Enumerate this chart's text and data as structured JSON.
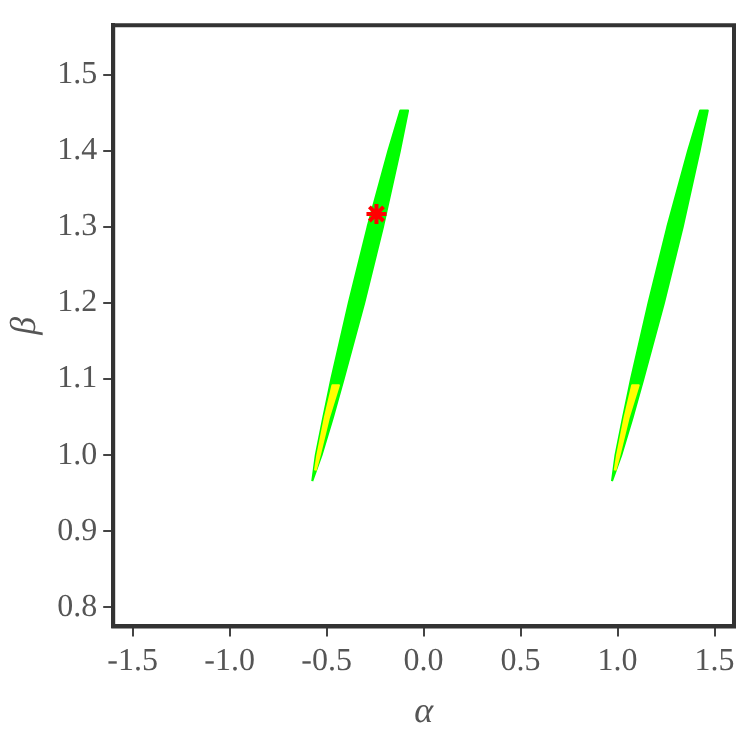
{
  "chart_data": {
    "type": "area",
    "xlabel": "α",
    "ylabel": "β",
    "xlim": [
      -1.6,
      1.6
    ],
    "ylim": [
      0.775,
      1.565
    ],
    "xticks": [
      {
        "value": -1.5,
        "label": "-1.5"
      },
      {
        "value": -1,
        "label": "-1.0"
      },
      {
        "value": -0.5,
        "label": "-0.5"
      },
      {
        "value": 0,
        "label": "0.0"
      },
      0.5,
      {
        "value": 1,
        "label": "1.0"
      },
      1.5
    ],
    "yticks": [
      0.8,
      0.9,
      {
        "value": 1,
        "label": "1.0"
      },
      1.1,
      1.2,
      1.3,
      1.4,
      1.5
    ],
    "grid": false,
    "legend": false,
    "series": [
      {
        "color": "#00ff00",
        "x": [
          -0.574,
          -0.556,
          -0.517,
          -0.476,
          -0.386,
          -0.289,
          -0.182,
          -0.12,
          -0.08,
          -0.122,
          -0.209,
          -0.306,
          -0.412,
          -0.467,
          -0.526,
          -0.574
        ],
        "values": [
          0.966,
          1.0,
          1.05,
          1.1,
          1.2,
          1.3,
          1.4,
          1.453,
          1.453,
          1.4,
          1.3,
          1.2,
          1.1,
          1.05,
          1.0,
          0.966
        ]
      },
      {
        "color": "#ffff00",
        "x": [
          -0.56,
          -0.548,
          -0.509,
          -0.47,
          -0.436,
          -0.487,
          -0.535,
          -0.556,
          -0.56
        ],
        "values": [
          0.98,
          1.0,
          1.05,
          1.092,
          1.092,
          1.05,
          1.0,
          0.98,
          0.98
        ]
      },
      {
        "color": "#00ff00",
        "x": [
          0.971,
          0.989,
          1.028,
          1.069,
          1.159,
          1.256,
          1.363,
          1.425,
          1.465,
          1.423,
          1.336,
          1.239,
          1.133,
          1.078,
          1.019,
          0.971
        ],
        "values": [
          0.966,
          1.0,
          1.05,
          1.1,
          1.2,
          1.3,
          1.4,
          1.453,
          1.453,
          1.4,
          1.3,
          1.2,
          1.1,
          1.05,
          1.0,
          0.966
        ]
      },
      {
        "color": "#ffff00",
        "x": [
          0.985,
          0.997,
          1.036,
          1.075,
          1.109,
          1.058,
          1.01,
          0.989,
          0.985
        ],
        "values": [
          0.98,
          1.0,
          1.05,
          1.092,
          1.092,
          1.05,
          1.0,
          0.98,
          0.98
        ]
      },
      {
        "type": "scatter",
        "color": "#ff0000",
        "marker": "cross",
        "x": [
          -0.243
        ],
        "values": [
          1.317
        ]
      }
    ]
  }
}
